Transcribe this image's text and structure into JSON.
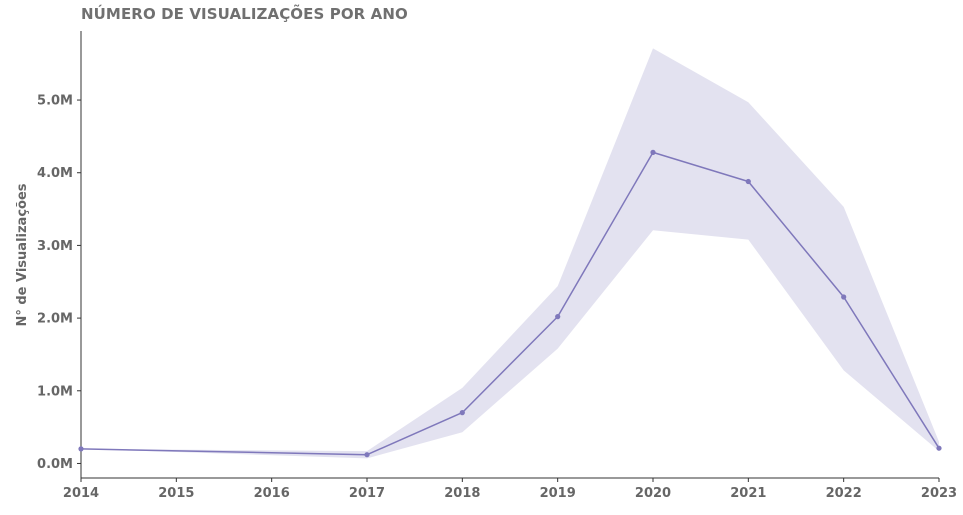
{
  "chart_data": {
    "type": "line",
    "title": "NÚMERO DE VISUALIZAÇÕES POR ANO",
    "xlabel": "",
    "ylabel": "N° de Visualizações",
    "x_ticks": [
      "2014",
      "2015",
      "2016",
      "2017",
      "2018",
      "2019",
      "2020",
      "2021",
      "2022",
      "2023"
    ],
    "xlim": [
      2014,
      2023
    ],
    "y_ticks": [
      "0.0M",
      "1.0M",
      "2.0M",
      "3.0M",
      "4.0M",
      "5.0M"
    ],
    "y_tick_values": [
      0,
      1000000,
      2000000,
      3000000,
      4000000,
      5000000
    ],
    "ylim": [
      -200000,
      5950000
    ],
    "grid": false,
    "series": [
      {
        "x": [
          2014,
          2017,
          2018,
          2019,
          2020,
          2021,
          2022,
          2023
        ],
        "values": [
          200000,
          120000,
          700000,
          2020000,
          4280000,
          3880000,
          2290000,
          210000
        ],
        "ci_upper": [
          200000,
          170000,
          1040000,
          2440000,
          5710000,
          4970000,
          3530000,
          300000
        ],
        "ci_lower": [
          200000,
          70000,
          430000,
          1580000,
          3210000,
          3080000,
          1280000,
          170000
        ]
      }
    ],
    "colors": {
      "line": "#7f78bb",
      "band": "#e3e2f0",
      "axis": "#333333",
      "text": "#666666"
    }
  }
}
